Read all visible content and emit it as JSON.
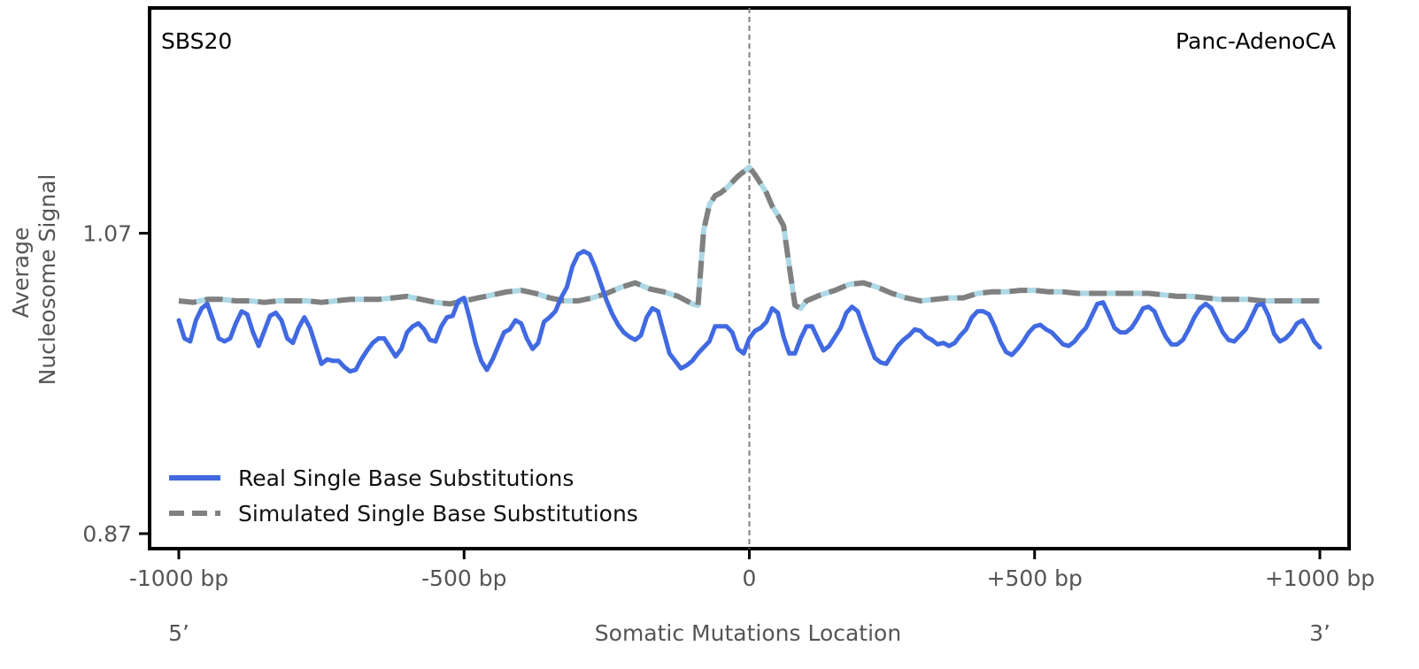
{
  "chart_data": {
    "type": "line",
    "signature_label": "SBS20",
    "cancer_type_label": "Panc-AdenoCA",
    "xlabel": "Somatic Mutations Location",
    "ylabel_line1": "Average",
    "ylabel_line2": "Nucleosome Signal",
    "xlim": [
      -1000,
      1000
    ],
    "ylim": [
      0.86,
      1.22
    ],
    "x_ticks": [
      {
        "value": -1000,
        "label": "-1000 bp"
      },
      {
        "value": -500,
        "label": "-500 bp"
      },
      {
        "value": 0,
        "label": "0"
      },
      {
        "value": 500,
        "label": "+500 bp"
      },
      {
        "value": 1000,
        "label": "+1000 bp"
      }
    ],
    "y_ticks": [
      {
        "value": 1.07,
        "label": "1.07"
      },
      {
        "value": 0.87,
        "label": "0.87"
      }
    ],
    "strand_left": "5’",
    "strand_right": "3’",
    "vertical_reference_x": 0,
    "legend": {
      "placement": "lower-left",
      "entries": [
        {
          "label": "Real Single Base Substitutions",
          "series": 0
        },
        {
          "label": "Simulated Single Base Substitutions",
          "series": 1
        }
      ]
    },
    "series": [
      {
        "name": "Real Single Base Substitutions",
        "color": "#4169e1",
        "style": "solid",
        "x": [
          -1000,
          -990,
          -980,
          -970,
          -960,
          -950,
          -940,
          -930,
          -920,
          -910,
          -900,
          -890,
          -880,
          -870,
          -860,
          -850,
          -840,
          -830,
          -820,
          -810,
          -800,
          -790,
          -780,
          -770,
          -760,
          -750,
          -740,
          -730,
          -720,
          -710,
          -700,
          -690,
          -680,
          -670,
          -660,
          -650,
          -640,
          -630,
          -620,
          -610,
          -600,
          -590,
          -580,
          -570,
          -560,
          -550,
          -540,
          -530,
          -520,
          -510,
          -500,
          -490,
          -480,
          -470,
          -460,
          -450,
          -440,
          -430,
          -420,
          -410,
          -400,
          -390,
          -380,
          -370,
          -360,
          -350,
          -340,
          -330,
          -320,
          -310,
          -300,
          -290,
          -280,
          -270,
          -260,
          -250,
          -240,
          -230,
          -220,
          -210,
          -200,
          -190,
          -180,
          -170,
          -160,
          -150,
          -140,
          -130,
          -120,
          -110,
          -100,
          -90,
          -80,
          -70,
          -60,
          -50,
          -40,
          -30,
          -20,
          -10,
          0,
          10,
          20,
          30,
          40,
          50,
          60,
          70,
          80,
          90,
          100,
          110,
          120,
          130,
          140,
          150,
          160,
          170,
          180,
          190,
          200,
          210,
          220,
          230,
          240,
          250,
          260,
          270,
          280,
          290,
          300,
          310,
          320,
          330,
          340,
          350,
          360,
          370,
          380,
          390,
          400,
          410,
          420,
          430,
          440,
          450,
          460,
          470,
          480,
          490,
          500,
          510,
          520,
          530,
          540,
          550,
          560,
          570,
          580,
          590,
          600,
          610,
          620,
          630,
          640,
          650,
          660,
          670,
          680,
          690,
          700,
          710,
          720,
          730,
          740,
          750,
          760,
          770,
          780,
          790,
          800,
          810,
          820,
          830,
          840,
          850,
          860,
          870,
          880,
          890,
          900,
          910,
          920,
          930,
          940,
          950,
          960,
          970,
          980,
          990,
          1000
        ],
        "y": [
          1.012,
          1.0,
          0.998,
          1.012,
          1.02,
          1.023,
          1.012,
          1.0,
          0.998,
          1.0,
          1.01,
          1.018,
          1.016,
          1.004,
          0.995,
          1.005,
          1.015,
          1.017,
          1.012,
          1.0,
          0.997,
          1.007,
          1.014,
          1.007,
          0.995,
          0.983,
          0.986,
          0.985,
          0.985,
          0.981,
          0.978,
          0.979,
          0.986,
          0.992,
          0.997,
          1.0,
          1.0,
          0.994,
          0.988,
          0.993,
          1.004,
          1.008,
          1.01,
          1.006,
          0.999,
          0.998,
          1.008,
          1.014,
          1.015,
          1.025,
          1.027,
          1.013,
          0.997,
          0.985,
          0.979,
          0.986,
          0.995,
          1.004,
          1.006,
          1.012,
          1.01,
          1.0,
          0.993,
          0.997,
          1.011,
          1.014,
          1.018,
          1.027,
          1.034,
          1.048,
          1.056,
          1.058,
          1.056,
          1.047,
          1.036,
          1.025,
          1.016,
          1.009,
          1.004,
          1.001,
          0.999,
          1.002,
          1.014,
          1.02,
          1.018,
          1.004,
          0.99,
          0.985,
          0.98,
          0.982,
          0.985,
          0.99,
          0.994,
          0.998,
          1.008,
          1.008,
          1.008,
          1.004,
          0.993,
          0.99,
          1.0,
          1.005,
          1.007,
          1.011,
          1.02,
          1.017,
          1.001,
          0.99,
          0.99,
          1.0,
          1.008,
          1.008,
          1.0,
          0.992,
          0.995,
          1.001,
          1.007,
          1.017,
          1.021,
          1.018,
          1.007,
          0.997,
          0.987,
          0.984,
          0.983,
          0.989,
          0.995,
          0.999,
          1.002,
          1.006,
          1.005,
          1.001,
          0.999,
          0.996,
          0.997,
          0.995,
          0.997,
          1.002,
          1.006,
          1.014,
          1.018,
          1.018,
          1.016,
          1.008,
          0.998,
          0.991,
          0.989,
          0.993,
          0.998,
          1.004,
          1.008,
          1.009,
          1.006,
          1.004,
          1.0,
          0.996,
          0.995,
          0.998,
          1.003,
          1.007,
          1.015,
          1.023,
          1.024,
          1.016,
          1.007,
          1.004,
          1.004,
          1.007,
          1.013,
          1.02,
          1.021,
          1.018,
          1.009,
          1.001,
          0.996,
          0.996,
          0.999,
          1.006,
          1.014,
          1.02,
          1.023,
          1.02,
          1.012,
          1.004,
          0.999,
          0.998,
          1.002,
          1.006,
          1.014,
          1.022,
          1.023,
          1.015,
          1.003,
          0.998,
          1.0,
          1.004,
          1.01,
          1.012,
          1.006,
          0.998,
          0.994
        ]
      },
      {
        "name": "Simulated Single Base Substitutions",
        "color": "#808080",
        "color_secondary": "#add8e6",
        "style": "dashed",
        "x": [
          -1000,
          -975,
          -950,
          -925,
          -900,
          -875,
          -850,
          -825,
          -800,
          -775,
          -750,
          -725,
          -700,
          -675,
          -650,
          -625,
          -600,
          -575,
          -550,
          -525,
          -500,
          -475,
          -450,
          -425,
          -400,
          -375,
          -350,
          -325,
          -300,
          -275,
          -250,
          -225,
          -200,
          -175,
          -150,
          -125,
          -100,
          -90,
          -80,
          -70,
          -60,
          -50,
          -40,
          -30,
          -20,
          -10,
          0,
          10,
          20,
          30,
          40,
          50,
          60,
          70,
          80,
          90,
          100,
          125,
          150,
          175,
          200,
          225,
          250,
          275,
          300,
          325,
          350,
          375,
          400,
          425,
          450,
          475,
          500,
          525,
          550,
          575,
          600,
          625,
          650,
          675,
          700,
          725,
          750,
          775,
          800,
          825,
          850,
          875,
          900,
          925,
          950,
          975,
          1000
        ],
        "y": [
          1.025,
          1.024,
          1.026,
          1.026,
          1.025,
          1.025,
          1.024,
          1.025,
          1.025,
          1.025,
          1.024,
          1.025,
          1.026,
          1.026,
          1.026,
          1.027,
          1.028,
          1.026,
          1.024,
          1.023,
          1.025,
          1.027,
          1.029,
          1.031,
          1.032,
          1.03,
          1.027,
          1.025,
          1.025,
          1.027,
          1.03,
          1.034,
          1.037,
          1.033,
          1.031,
          1.028,
          1.023,
          1.022,
          1.072,
          1.089,
          1.095,
          1.097,
          1.1,
          1.104,
          1.108,
          1.111,
          1.114,
          1.109,
          1.103,
          1.097,
          1.088,
          1.082,
          1.075,
          1.048,
          1.022,
          1.02,
          1.025,
          1.029,
          1.032,
          1.036,
          1.037,
          1.034,
          1.03,
          1.027,
          1.025,
          1.026,
          1.027,
          1.027,
          1.03,
          1.031,
          1.031,
          1.032,
          1.032,
          1.031,
          1.031,
          1.03,
          1.03,
          1.03,
          1.03,
          1.03,
          1.03,
          1.029,
          1.028,
          1.028,
          1.027,
          1.026,
          1.026,
          1.026,
          1.025,
          1.025,
          1.025,
          1.025,
          1.025
        ]
      }
    ]
  }
}
